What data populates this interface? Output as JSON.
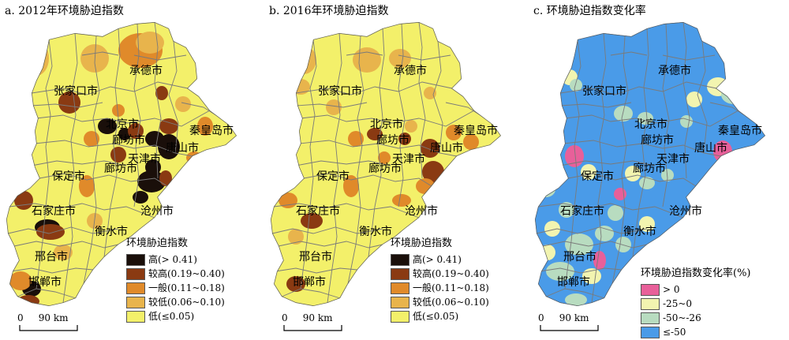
{
  "panels": [
    {
      "title": "a. 2012年环境胁迫指数",
      "base_fill": "#f3f06a",
      "legend": {
        "title": "环境胁迫指数",
        "items": [
          {
            "label": "高(> 0.41)",
            "color": "#1a0f0a"
          },
          {
            "label": "较高(0.19~0.40)",
            "color": "#8a3a12"
          },
          {
            "label": "一般(0.11~0.18)",
            "color": "#e08a2a"
          },
          {
            "label": "较低(0.06~0.10)",
            "color": "#e8b44c"
          },
          {
            "label": "低(≤0.05)",
            "color": "#f3f06a"
          }
        ]
      },
      "scale": {
        "zero": "0",
        "value": "90",
        "unit": "km"
      }
    },
    {
      "title": "b. 2016年环境胁迫指数",
      "base_fill": "#f3f06a",
      "legend": {
        "title": "环境胁迫指数",
        "items": [
          {
            "label": "高(> 0.41)",
            "color": "#1a0f0a"
          },
          {
            "label": "较高(0.19~0.40)",
            "color": "#8a3a12"
          },
          {
            "label": "一般(0.11~0.18)",
            "color": "#e08a2a"
          },
          {
            "label": "较低(0.06~0.10)",
            "color": "#e8b44c"
          },
          {
            "label": "低(≤0.05)",
            "color": "#f3f06a"
          }
        ]
      },
      "scale": {
        "zero": "0",
        "value": "90",
        "unit": "km"
      }
    },
    {
      "title": "c. 环境胁迫指数变化率",
      "base_fill": "#4a9be8",
      "legend": {
        "title": "环境胁迫指数变化率(%)",
        "items": [
          {
            "label": "> 0",
            "color": "#e8609a"
          },
          {
            "label": "-25~0",
            "color": "#f2f4b0"
          },
          {
            "label": "-50~-26",
            "color": "#b8dcc0"
          },
          {
            "label": "≤-50",
            "color": "#4a9be8"
          }
        ]
      },
      "scale": {
        "zero": "0",
        "value": "90",
        "unit": "km"
      }
    }
  ],
  "cities": [
    "张家口市",
    "承德市",
    "北京市",
    "秦皇岛市",
    "廊坊市",
    "唐山市",
    "天津市",
    "保定市",
    "廊坊市",
    "沧州市",
    "石家庄市",
    "衡水市",
    "邢台市",
    "邯郸市"
  ],
  "district_border": "#7a7a7a"
}
